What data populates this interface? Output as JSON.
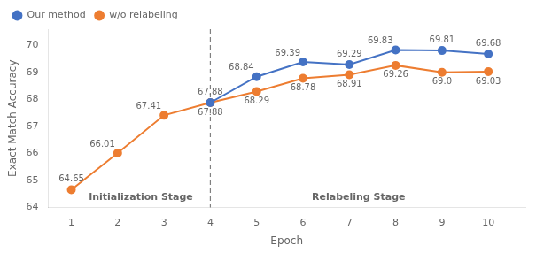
{
  "chart_data": {
    "type": "line",
    "x": [
      1,
      2,
      3,
      4,
      5,
      6,
      7,
      8,
      9,
      10
    ],
    "series": [
      {
        "name": "Our method",
        "color": "#4472C4",
        "marker": "circle",
        "values": [
          null,
          null,
          null,
          67.88,
          68.84,
          69.39,
          69.29,
          69.83,
          69.81,
          69.68
        ]
      },
      {
        "name": "w/o relabeling",
        "color": "#ED7D31",
        "marker": "circle",
        "values": [
          64.65,
          66.01,
          67.41,
          67.88,
          68.29,
          68.78,
          68.91,
          69.26,
          69.0,
          69.03
        ],
        "value_labels": [
          "64.65",
          "66.01",
          "67.41",
          "67.88",
          "68.29",
          "68.78",
          "68.91",
          "69.26",
          "69.0",
          "69.03"
        ]
      }
    ],
    "xlabel": "Epoch",
    "ylabel": "Exact Match Accuracy",
    "xlim": [
      0.5,
      10.8
    ],
    "xticks": [
      1,
      2,
      3,
      4,
      5,
      6,
      7,
      8,
      9,
      10
    ],
    "ylim": [
      64,
      70.6
    ],
    "yticks": [
      64,
      65,
      66,
      67,
      68,
      69,
      70
    ],
    "vlines": [
      4
    ],
    "annotations": [
      {
        "text": "Initialization Stage",
        "x": 2.5,
        "y": 64.18
      },
      {
        "text": "Relabeling Stage",
        "x": 7.2,
        "y": 64.18
      }
    ],
    "data_labels": true,
    "legend": "upper left",
    "grid": false
  }
}
